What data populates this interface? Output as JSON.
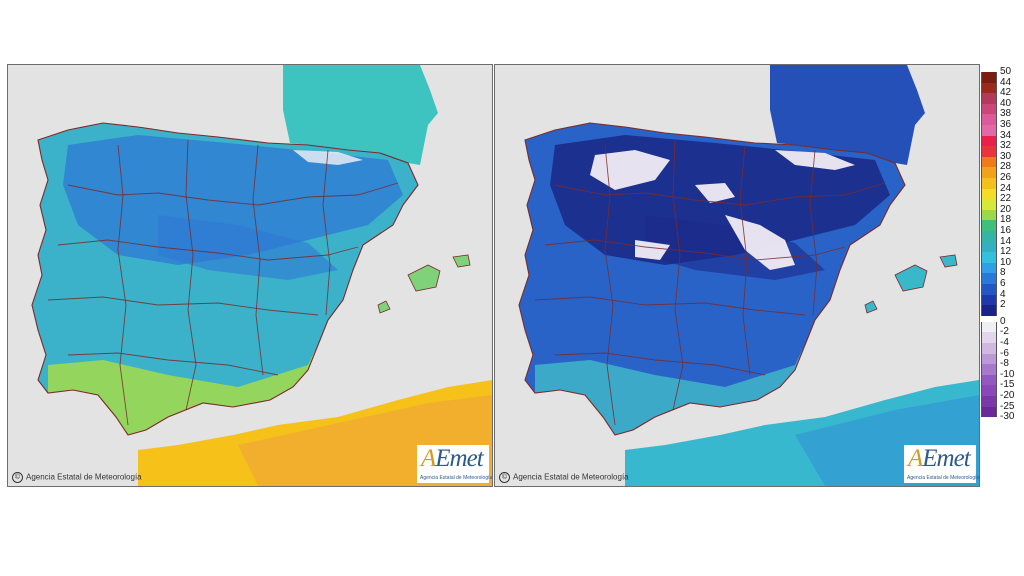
{
  "maps": [
    {
      "id": "left",
      "credit": "Agencia Estatal de Meteorología",
      "logo": {
        "prefix": "A",
        "main": "Emet",
        "subtitle": "Agencia Estatal de Meteorología"
      },
      "color_scheme": {
        "sea": "#e3e3e3",
        "land_base": "#3bb2c9",
        "north_cold": "#2f78d4",
        "south_warm": "#9fd852",
        "africa": "#f6c21a",
        "borders": "#7a2a2a"
      }
    },
    {
      "id": "right",
      "credit": "Agencia Estatal de Meteorología",
      "logo": {
        "prefix": "A",
        "main": "Emet",
        "subtitle": "Agencia Estatal de Meteorología"
      },
      "color_scheme": {
        "sea": "#e3e3e3",
        "land_base": "#2a63c8",
        "north_cold": "#1b2a8a",
        "south_warm": "#3fb5c9",
        "frost": "#f2ecf5",
        "africa": "#38b8cf",
        "borders": "#7a2a2a"
      }
    }
  ],
  "legend": {
    "labels": [
      "50",
      "44",
      "42",
      "40",
      "38",
      "36",
      "34",
      "32",
      "30",
      "28",
      "26",
      "24",
      "22",
      "20",
      "18",
      "16",
      "14",
      "12",
      "10",
      "8",
      "6",
      "4",
      "2",
      "0",
      "-2",
      "-4",
      "-6",
      "-8",
      "-10",
      "-15",
      "-20",
      "-25",
      "-30"
    ],
    "colors": [
      "#7a1e12",
      "#9a2a1c",
      "#b23a5a",
      "#c8487a",
      "#dc5a9a",
      "#e06aa8",
      "#e8204a",
      "#e8343a",
      "#ee7a1a",
      "#f0a21c",
      "#f4c01e",
      "#f4dc28",
      "#d6e83a",
      "#9cd84a",
      "#3fc07a",
      "#36b4a8",
      "#33b0c4",
      "#33c0dc",
      "#2fa0e6",
      "#2a78d8",
      "#2456c4",
      "#1e3aa8",
      "#1a2488",
      "#f0f0f4",
      "#e2d6ec",
      "#d0b8e0",
      "#bc98d6",
      "#a878cc",
      "#9458c2",
      "#8a48b8",
      "#7a38a8",
      "#6a2898"
    ]
  }
}
